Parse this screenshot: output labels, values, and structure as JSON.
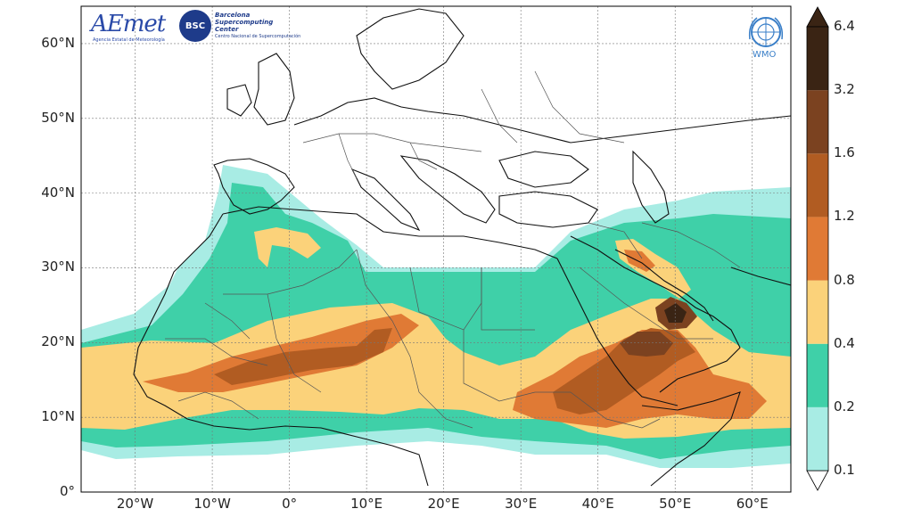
{
  "logos": {
    "aemet": {
      "text": "AEmet",
      "subtext": "Agencia Estatal de Meteorología"
    },
    "bsc": {
      "badge": "BSC",
      "line1": "Barcelona",
      "line2": "Supercomputing",
      "line3": "Center",
      "line4": "Centro Nacional de Supercomputación"
    },
    "wmo": {
      "text": "WMO"
    }
  },
  "axes": {
    "lat_labels": [
      "60°N",
      "50°N",
      "40°N",
      "30°N",
      "20°N",
      "10°N",
      "0°"
    ],
    "lat_values": [
      60,
      50,
      40,
      30,
      20,
      10,
      0
    ],
    "lon_labels": [
      "20°W",
      "10°W",
      "0°",
      "10°E",
      "20°E",
      "30°E",
      "40°E",
      "50°E",
      "60°E"
    ],
    "lon_values": [
      -20,
      -10,
      0,
      10,
      20,
      30,
      40,
      50,
      60
    ],
    "lon_range": [
      -27,
      65
    ],
    "lat_range": [
      0,
      65
    ],
    "grid": true
  },
  "colorbar": {
    "levels": [
      "0.1",
      "0.2",
      "0.4",
      "0.8",
      "1.2",
      "1.6",
      "3.2",
      "6.4"
    ],
    "colors": [
      "#a8ece4",
      "#3fd0a8",
      "#fbd27a",
      "#e07a35",
      "#b15c22",
      "#7b4220",
      "#3a2414"
    ],
    "extend": "both"
  },
  "colors": {
    "c1": "#a8ece4",
    "c2": "#3fd0a8",
    "c3": "#fbd27a",
    "c4": "#e07a35",
    "c5": "#b15c22",
    "c6": "#7b4220",
    "c7": "#3a2414",
    "land_edge": "#111111",
    "border": "#555555"
  }
}
